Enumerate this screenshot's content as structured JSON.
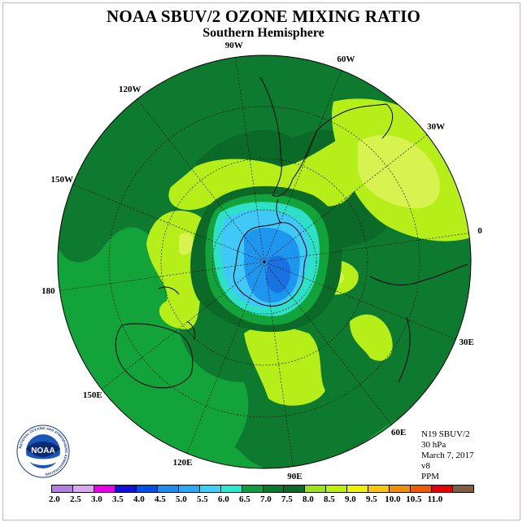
{
  "title": "NOAA SBUV/2 OZONE MIXING RATIO",
  "subtitle": "Southern Hemisphere",
  "longitude_labels": [
    {
      "text": "90W",
      "deg": -90
    },
    {
      "text": "60W",
      "deg": -60
    },
    {
      "text": "30W",
      "deg": -30
    },
    {
      "text": "0",
      "deg": 0
    },
    {
      "text": "30E",
      "deg": 30
    },
    {
      "text": "60E",
      "deg": 60
    },
    {
      "text": "90E",
      "deg": 90
    },
    {
      "text": "120E",
      "deg": 120
    },
    {
      "text": "150E",
      "deg": 150
    },
    {
      "text": "180",
      "deg": 180
    },
    {
      "text": "150W",
      "deg": -150
    },
    {
      "text": "120W",
      "deg": -120
    }
  ],
  "info": {
    "satellite": "N19 SBUV/2",
    "level": "30 hPa",
    "date": "March 7, 2017",
    "version": "v8",
    "units": "PPM"
  },
  "logo": {
    "text": "NOAA",
    "ring_text": "NATIONAL OCEANIC AND ATMOSPHERIC ADMINISTRATION"
  },
  "colorbar": {
    "ticks": [
      "2.0",
      "2.5",
      "3.0",
      "3.5",
      "4.0",
      "4.5",
      "5.0",
      "5.5",
      "6.0",
      "6.5",
      "7.0",
      "7.5",
      "8.0",
      "8.5",
      "9.0",
      "9.5",
      "10.0",
      "10.5",
      "11.0"
    ],
    "colors": [
      "#b07fe0",
      "#d9a8f0",
      "#e800e8",
      "#1010d8",
      "#0050e8",
      "#1e8cf0",
      "#28aaf4",
      "#3cd2f8",
      "#28e8d0",
      "#0ea040",
      "#087a2c",
      "#0c6a28",
      "#9ee414",
      "#bff000",
      "#f0f000",
      "#f8c800",
      "#f09000",
      "#f05a00",
      "#e80000",
      "#806040"
    ]
  },
  "map": {
    "background_color": "#0e7a30",
    "fields": [
      {
        "level": "7.0",
        "color": "#0b6a28"
      },
      {
        "level": "7.5",
        "color": "#b6ee1a"
      },
      {
        "level": "8.0",
        "color": "#d8f250"
      },
      {
        "level": "6.5",
        "color": "#12a43a"
      },
      {
        "level": "6.0",
        "color": "#2ee0c8"
      },
      {
        "level": "5.5",
        "color": "#40c8f6"
      },
      {
        "level": "5.0",
        "color": "#1e96ee"
      },
      {
        "level": "4.5",
        "color": "#1a72e0"
      }
    ]
  }
}
